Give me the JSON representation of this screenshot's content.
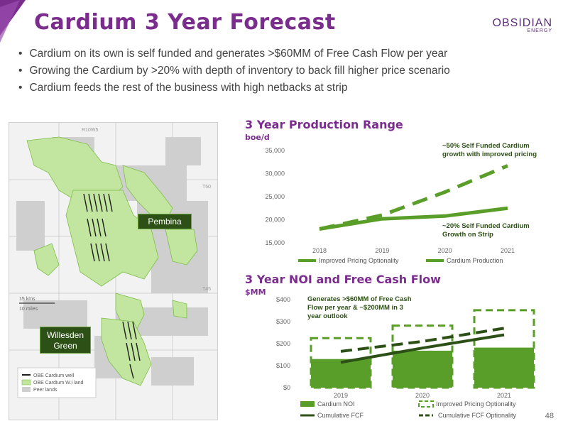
{
  "header": {
    "title": "Cardium 3 Year Forecast",
    "logo_line1": "OBSIDIAN",
    "logo_line2": "ENERGY",
    "brand_color": "#7b2d8e"
  },
  "bullets": [
    "Cardium on its own is self funded and generates >$60MM of Free Cash Flow per year",
    "Growing the Cardium by >20% with depth of inventory to back fill higher price scenario",
    "Cardium feeds the rest of the business with high netbacks at strip"
  ],
  "map": {
    "township_labels": [
      "R10W5",
      "T50",
      "T45"
    ],
    "pembina_label": "Pembina",
    "willesden_label_1": "Willesden",
    "willesden_label_2": "Green",
    "scale_km": "15 kms",
    "scale_miles": "10 miles",
    "legend": [
      "OBE Cardium well",
      "OBE Cardium W.I land",
      "Peer lands"
    ]
  },
  "production_chart_header": {
    "title": "3 Year Production Range",
    "unit": "boe/d"
  },
  "noi_chart_header": {
    "title": "3 Year NOI and Free Cash Flow",
    "unit": "$MM"
  },
  "page_number": "48",
  "chart_data": [
    {
      "type": "line",
      "x": [
        "2018",
        "2019",
        "2020",
        "2021"
      ],
      "ylim": [
        15000,
        35000
      ],
      "yticks": [
        "35,000",
        "30,000",
        "25,000",
        "20,000",
        "15,000"
      ],
      "series": [
        {
          "name": "Improved Pricing Optionality",
          "style": "dashed",
          "color": "#5a9e2a",
          "values": [
            18000,
            21000,
            26000,
            31700
          ]
        },
        {
          "name": "Cardium  Production",
          "style": "solid",
          "color": "#5a9e2a",
          "values": [
            18000,
            20200,
            20800,
            22500
          ]
        }
      ],
      "annotations": [
        "~50% Self Funded Cardium growth with improved pricing",
        "~20% Self Funded Cardium Growth on Strip"
      ]
    },
    {
      "type": "bar",
      "categories": [
        "2019",
        "2020",
        "2021"
      ],
      "ylim": [
        0,
        400
      ],
      "yticks": [
        "$400",
        "$300",
        "$200",
        "$100",
        "$0"
      ],
      "series": [
        {
          "name": "Cardium  NOI",
          "type": "bar",
          "color": "#5a9e2a",
          "values": [
            130,
            168,
            182
          ]
        },
        {
          "name": "Improved Pricing Optionality",
          "type": "bar-dashed-outline",
          "color": "#5a9e2a",
          "values": [
            225,
            282,
            352
          ]
        },
        {
          "name": "Cumulative FCF",
          "type": "line",
          "color": "#2d5016",
          "values": [
            115,
            180,
            240
          ]
        },
        {
          "name": "Cumulative FCF Optionality",
          "type": "line-dashed",
          "color": "#2d5016",
          "values": [
            165,
            210,
            270
          ]
        }
      ],
      "annotations": [
        "Generates >$60MM of Free Cash Flow per year & ~$200MM in 3 year outlook"
      ]
    }
  ]
}
